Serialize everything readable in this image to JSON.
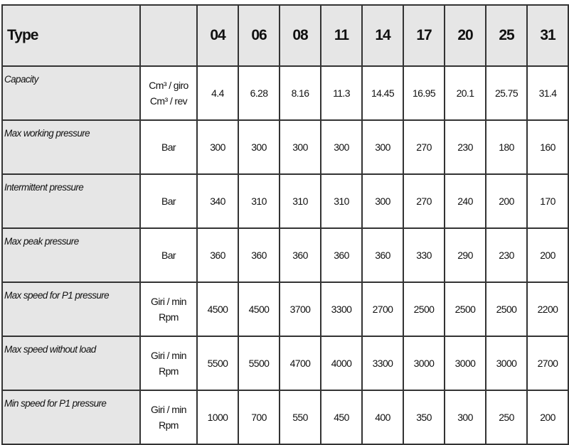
{
  "header": {
    "type_label": "Type",
    "unit_label": "",
    "models": [
      "04",
      "06",
      "08",
      "11",
      "14",
      "17",
      "20",
      "25",
      "31"
    ]
  },
  "rows": [
    {
      "label": "Capacity",
      "unit_lines": [
        "Cm³ / giro",
        "Cm³ / rev"
      ],
      "values": [
        "4.4",
        "6.28",
        "8.16",
        "11.3",
        "14.45",
        "16.95",
        "20.1",
        "25.75",
        "31.4"
      ]
    },
    {
      "label": "Max working pressure",
      "unit_lines": [
        "Bar"
      ],
      "values": [
        "300",
        "300",
        "300",
        "300",
        "300",
        "270",
        "230",
        "180",
        "160"
      ]
    },
    {
      "label": "Intermittent pressure",
      "unit_lines": [
        "Bar"
      ],
      "values": [
        "340",
        "310",
        "310",
        "310",
        "300",
        "270",
        "240",
        "200",
        "170"
      ]
    },
    {
      "label": "Max peak pressure",
      "unit_lines": [
        "Bar"
      ],
      "values": [
        "360",
        "360",
        "360",
        "360",
        "360",
        "330",
        "290",
        "230",
        "200"
      ]
    },
    {
      "label": "Max speed for P1 pressure",
      "unit_lines": [
        "Giri / min",
        "Rpm"
      ],
      "values": [
        "4500",
        "4500",
        "3700",
        "3300",
        "2700",
        "2500",
        "2500",
        "2500",
        "2200"
      ]
    },
    {
      "label": "Max speed without load",
      "unit_lines": [
        "Giri / min",
        "Rpm"
      ],
      "values": [
        "5500",
        "5500",
        "4700",
        "4000",
        "3300",
        "3000",
        "3000",
        "3000",
        "2700"
      ]
    },
    {
      "label": "Min speed for P1 pressure",
      "unit_lines": [
        "Giri / min",
        "Rpm"
      ],
      "values": [
        "1000",
        "700",
        "550",
        "450",
        "400",
        "350",
        "300",
        "250",
        "200"
      ]
    }
  ]
}
